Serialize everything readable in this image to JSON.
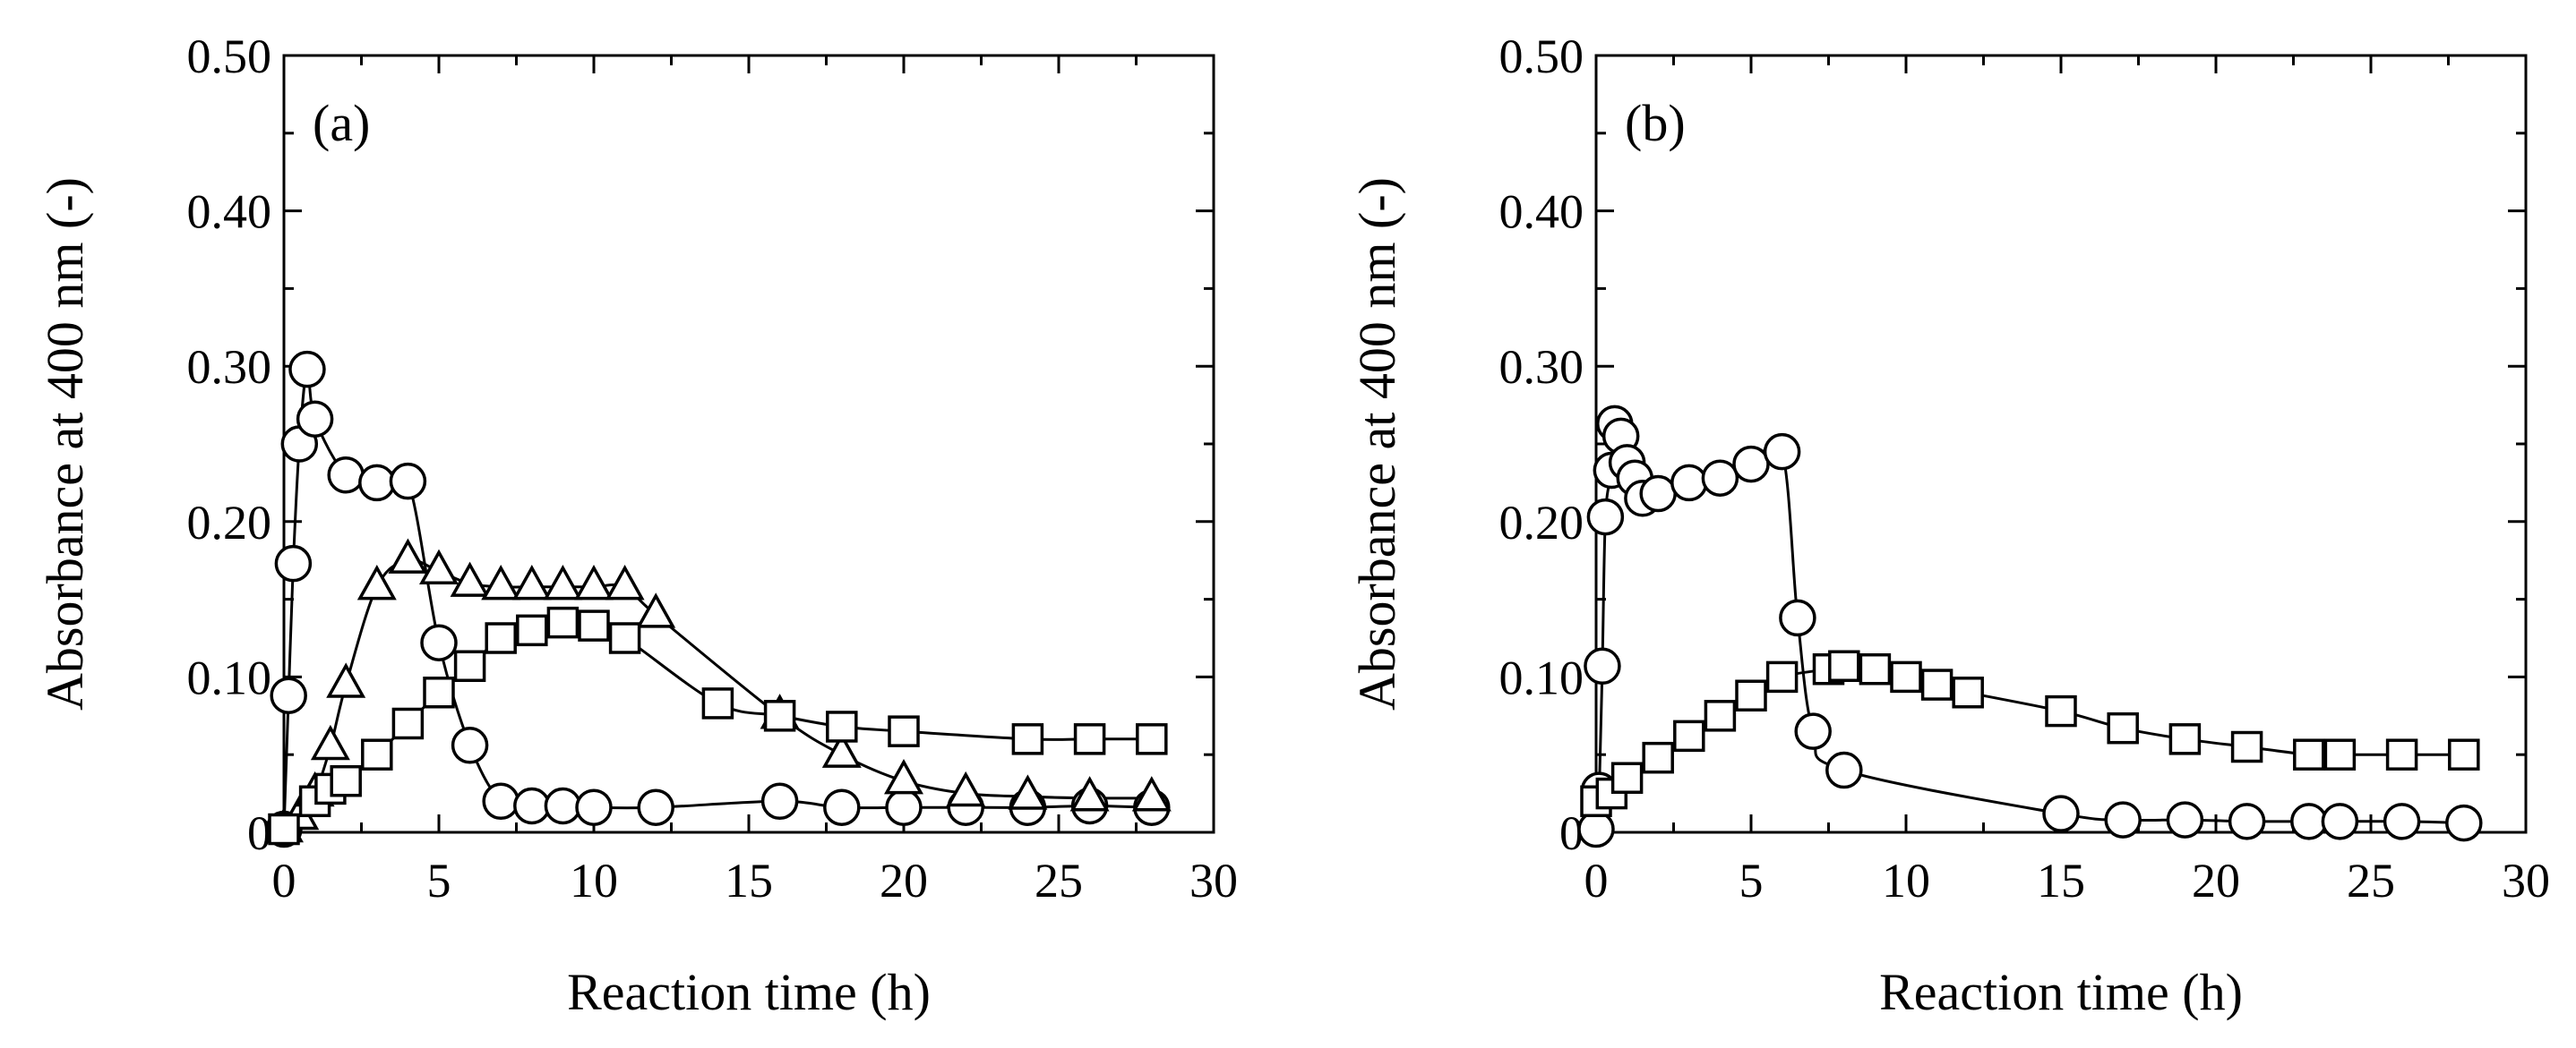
{
  "chart_data": [
    {
      "type": "scatter",
      "panel_label": "(a)",
      "xlabel": "Reaction time (h)",
      "ylabel": "Absorbance at 400 nm (-)",
      "xlim": [
        0,
        30
      ],
      "ylim": [
        0,
        0.5
      ],
      "xticks": [
        0,
        5,
        10,
        15,
        20,
        25,
        30
      ],
      "xtick_labels": [
        "0",
        "5",
        "10",
        "15",
        "20",
        "25",
        "30"
      ],
      "yticks": [
        0,
        0.1,
        0.2,
        0.3,
        0.4,
        0.5
      ],
      "ytick_labels": [
        "0",
        "0.10",
        "0.20",
        "0.30",
        "0.40",
        "0.50"
      ],
      "series": [
        {
          "name": "circle",
          "marker": "circle",
          "x": [
            0,
            0.15,
            0.3,
            0.5,
            0.75,
            1,
            2,
            3,
            4,
            5,
            6,
            7,
            8,
            9,
            10,
            12,
            16,
            18,
            20,
            22,
            24,
            26,
            28
          ],
          "y": [
            0.002,
            0.088,
            0.173,
            0.25,
            0.298,
            0.266,
            0.23,
            0.225,
            0.226,
            0.122,
            0.056,
            0.02,
            0.017,
            0.017,
            0.016,
            0.016,
            0.02,
            0.016,
            0.016,
            0.016,
            0.016,
            0.017,
            0.016
          ]
        },
        {
          "name": "triangle",
          "marker": "triangle",
          "x": [
            0,
            0.5,
            1,
            1.5,
            2,
            3,
            4,
            5,
            6,
            7,
            8,
            9,
            10,
            11,
            12,
            16,
            18,
            20,
            22,
            24,
            26,
            28
          ],
          "y": [
            0.002,
            0.01,
            0.025,
            0.055,
            0.095,
            0.158,
            0.175,
            0.168,
            0.16,
            0.158,
            0.158,
            0.158,
            0.158,
            0.158,
            0.14,
            0.075,
            0.05,
            0.033,
            0.025,
            0.023,
            0.022,
            0.022
          ]
        },
        {
          "name": "square",
          "marker": "square",
          "x": [
            0,
            1,
            1.5,
            2,
            3,
            4,
            5,
            6,
            7,
            8,
            9,
            10,
            11,
            14,
            16,
            18,
            20,
            24,
            26,
            28
          ],
          "y": [
            0.002,
            0.02,
            0.028,
            0.033,
            0.05,
            0.07,
            0.09,
            0.107,
            0.125,
            0.13,
            0.135,
            0.133,
            0.125,
            0.083,
            0.075,
            0.068,
            0.065,
            0.06,
            0.06,
            0.06
          ]
        }
      ]
    },
    {
      "type": "scatter",
      "panel_label": "(b)",
      "xlabel": "Reaction time (h)",
      "ylabel": "Absorbance at 400 nm (-)",
      "xlim": [
        0,
        30
      ],
      "ylim": [
        0,
        0.5
      ],
      "xticks": [
        0,
        5,
        10,
        15,
        20,
        25,
        30
      ],
      "xtick_labels": [
        "0",
        "5",
        "10",
        "15",
        "20",
        "25",
        "30"
      ],
      "yticks": [
        0,
        0.1,
        0.2,
        0.3,
        0.4,
        0.5
      ],
      "ytick_labels": [
        "0",
        "0.10",
        "0.20",
        "0.30",
        "0.40",
        "0.50"
      ],
      "series": [
        {
          "name": "circle",
          "marker": "circle",
          "x": [
            0,
            0.1,
            0.2,
            0.3,
            0.5,
            0.6,
            0.8,
            1,
            1.25,
            1.5,
            2,
            3,
            4,
            5,
            6,
            6.5,
            7,
            8,
            15,
            17,
            19,
            21,
            23,
            24,
            26,
            28
          ],
          "y": [
            0.002,
            0.027,
            0.107,
            0.203,
            0.233,
            0.263,
            0.255,
            0.238,
            0.228,
            0.215,
            0.218,
            0.225,
            0.228,
            0.237,
            0.245,
            0.138,
            0.065,
            0.04,
            0.012,
            0.008,
            0.008,
            0.007,
            0.007,
            0.007,
            0.007,
            0.006
          ]
        },
        {
          "name": "square",
          "marker": "square",
          "x": [
            0,
            0.5,
            1,
            2,
            3,
            4,
            5,
            6,
            7.5,
            8,
            9,
            10,
            11,
            12,
            15,
            17,
            19,
            21,
            23,
            24,
            26,
            28
          ],
          "y": [
            0.02,
            0.025,
            0.035,
            0.048,
            0.062,
            0.075,
            0.088,
            0.1,
            0.105,
            0.107,
            0.105,
            0.1,
            0.095,
            0.09,
            0.078,
            0.067,
            0.06,
            0.055,
            0.05,
            0.05,
            0.05,
            0.05
          ]
        }
      ]
    }
  ]
}
